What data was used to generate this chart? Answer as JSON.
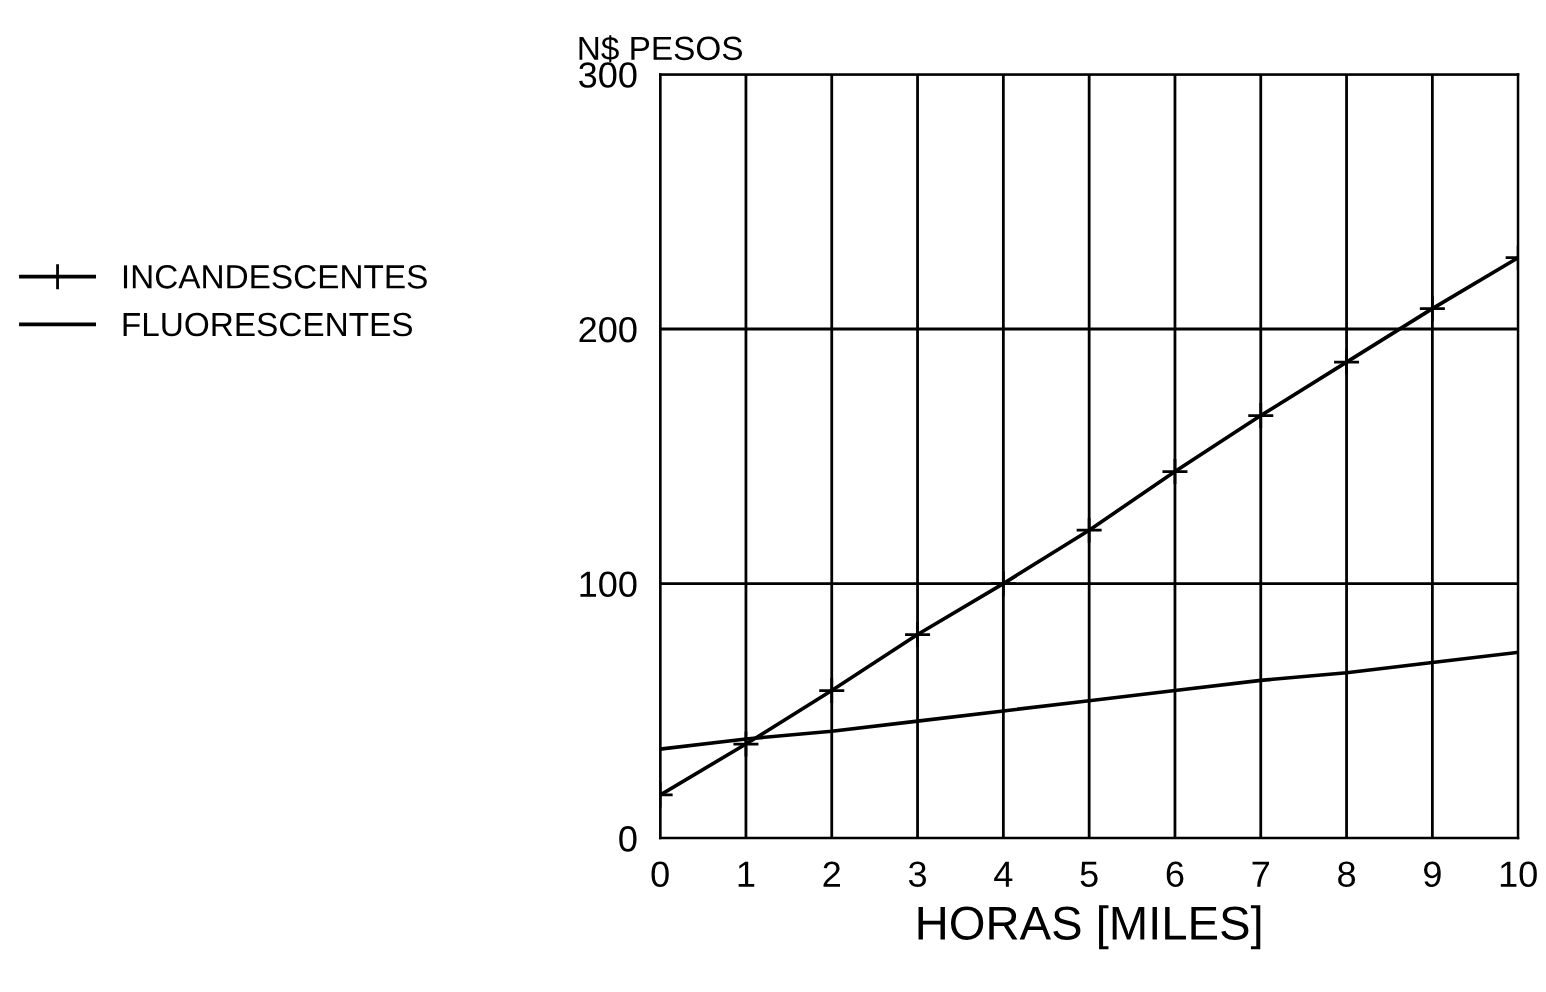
{
  "chart_data": {
    "type": "line",
    "xlabel": "HORAS [MILES]",
    "ylabel": "N$ PESOS",
    "x": [
      0,
      1,
      2,
      3,
      4,
      5,
      6,
      7,
      8,
      9,
      10
    ],
    "series": [
      {
        "name": "INCANDESCENTES",
        "color": "#000000",
        "marker": "cross",
        "values": [
          17,
          37,
          58,
          80,
          100,
          121,
          144,
          166,
          187,
          208,
          228
        ]
      },
      {
        "name": "FLUORESCENTES",
        "color": "#000000",
        "marker": "none",
        "values": [
          35,
          39,
          42,
          46,
          50,
          54,
          58,
          62,
          65,
          69,
          73
        ]
      }
    ],
    "xlim": [
      0,
      10
    ],
    "xticks": [
      0,
      1,
      2,
      3,
      4,
      5,
      6,
      7,
      8,
      9,
      10
    ],
    "ylim": [
      0,
      300
    ],
    "yticks": [
      0,
      100,
      200,
      300
    ],
    "grid": true,
    "legend": "left",
    "line_style": "solid"
  }
}
